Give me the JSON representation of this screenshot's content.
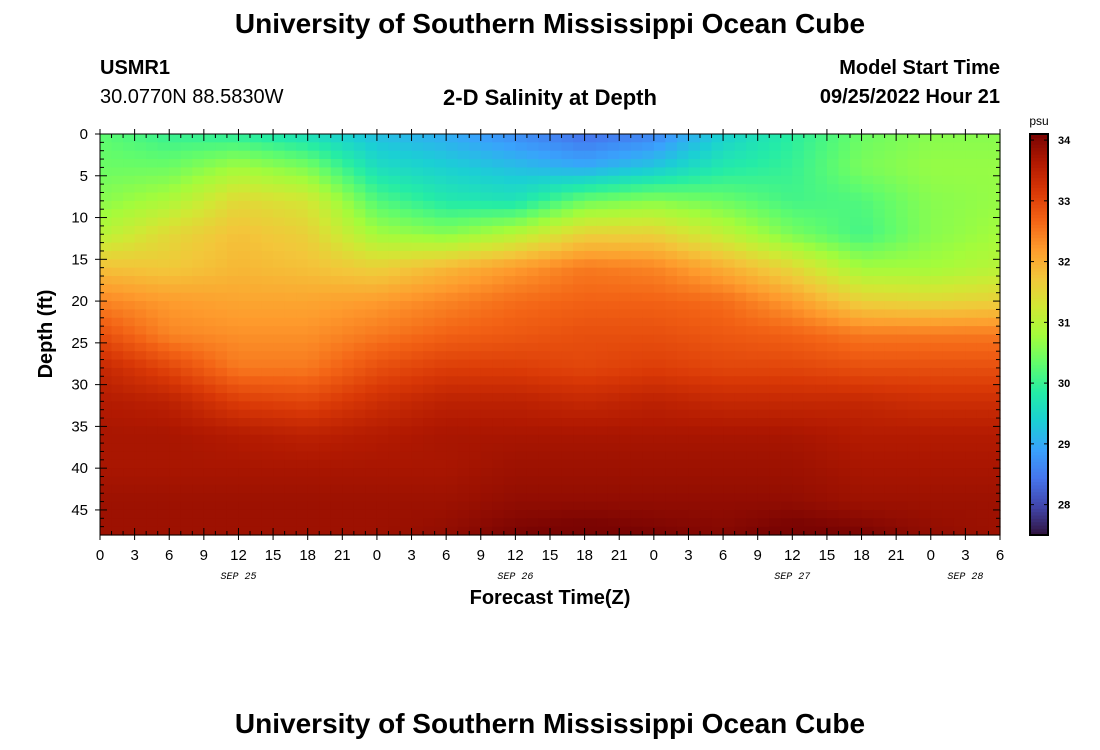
{
  "header": {
    "title": "University of Southern Mississippi Ocean Cube",
    "station_id": "USMR1",
    "coordinates": "30.0770N  88.5830W",
    "plot_title": "2-D Salinity at Depth",
    "model_start_label": "Model Start Time",
    "model_start_value": "09/25/2022 Hour 21"
  },
  "footer": {
    "title": "University of Southern Mississippi Ocean Cube"
  },
  "chart_data": {
    "type": "heatmap",
    "title": "2-D Salinity at Depth",
    "xlabel": "Forecast Time(Z)",
    "ylabel": "Depth (ft)",
    "x_tick_labels": [
      "0",
      "3",
      "6",
      "9",
      "12",
      "15",
      "18",
      "21",
      "0",
      "3",
      "6",
      "9",
      "12",
      "15",
      "18",
      "21",
      "0",
      "3",
      "6",
      "9",
      "12",
      "15",
      "18",
      "21",
      "0",
      "3",
      "6"
    ],
    "x_range_hours": [
      0,
      78
    ],
    "day_labels": [
      {
        "label": "SEP 25",
        "hour": 12
      },
      {
        "label": "SEP 26",
        "hour": 36
      },
      {
        "label": "SEP 27",
        "hour": 60
      },
      {
        "label": "SEP 28",
        "hour": 75
      }
    ],
    "y_ticks": [
      0,
      5,
      10,
      15,
      20,
      25,
      30,
      35,
      40,
      45
    ],
    "ylim": [
      0,
      48
    ],
    "colorbar": {
      "unit": "psu",
      "min": 27.5,
      "max": 34.1,
      "ticks": [
        28,
        29,
        30,
        31,
        32,
        33,
        34
      ],
      "colormap": [
        "#30123b",
        "#4145ab",
        "#4675ed",
        "#39a2fc",
        "#1bcfd4",
        "#24eca6",
        "#61fc6c",
        "#a4fc3b",
        "#d1e834",
        "#f3c63a",
        "#fe9b2d",
        "#f36315",
        "#d93806",
        "#b11901",
        "#7a0402"
      ]
    },
    "grid": {
      "hours": [
        0,
        6,
        12,
        18,
        24,
        30,
        36,
        42,
        48,
        54,
        60,
        66,
        72,
        78
      ],
      "depths": [
        0,
        4,
        8,
        12,
        16,
        20,
        24,
        28,
        32,
        36,
        40,
        44,
        48
      ],
      "salinity_psu": [
        [
          30.3,
          30.0,
          29.9,
          29.6,
          29.2,
          29.0,
          28.7,
          28.4,
          28.6,
          29.4,
          29.9,
          30.4,
          30.6,
          30.6
        ],
        [
          30.4,
          30.4,
          30.8,
          30.5,
          29.6,
          29.4,
          29.2,
          29.0,
          29.3,
          29.8,
          30.0,
          30.5,
          30.7,
          30.7
        ],
        [
          30.6,
          30.9,
          31.5,
          31.3,
          30.2,
          29.8,
          29.7,
          30.4,
          30.6,
          30.4,
          30.1,
          30.2,
          30.6,
          30.7
        ],
        [
          31.0,
          31.5,
          31.8,
          31.6,
          30.8,
          30.6,
          31.0,
          31.6,
          31.6,
          31.1,
          30.5,
          30.1,
          30.6,
          30.8
        ],
        [
          31.8,
          31.7,
          31.9,
          31.8,
          31.6,
          31.9,
          32.2,
          32.5,
          32.4,
          32.0,
          31.5,
          30.8,
          30.8,
          31.0
        ],
        [
          32.4,
          32.2,
          32.1,
          32.1,
          32.2,
          32.4,
          32.6,
          32.7,
          32.7,
          32.6,
          32.2,
          31.6,
          31.5,
          31.6
        ],
        [
          32.9,
          32.4,
          32.3,
          32.3,
          32.5,
          32.7,
          32.8,
          32.9,
          32.9,
          32.8,
          32.7,
          32.5,
          32.5,
          32.5
        ],
        [
          33.4,
          33.0,
          32.5,
          32.5,
          32.9,
          33.1,
          33.1,
          33.0,
          33.1,
          33.0,
          33.0,
          32.9,
          32.9,
          32.9
        ],
        [
          33.6,
          33.5,
          33.1,
          33.0,
          33.3,
          33.5,
          33.5,
          33.4,
          33.5,
          33.4,
          33.4,
          33.4,
          33.3,
          33.3
        ],
        [
          33.7,
          33.7,
          33.6,
          33.5,
          33.6,
          33.7,
          33.7,
          33.7,
          33.7,
          33.7,
          33.7,
          33.6,
          33.6,
          33.6
        ],
        [
          33.7,
          33.7,
          33.7,
          33.7,
          33.7,
          33.7,
          33.8,
          33.8,
          33.8,
          33.8,
          33.8,
          33.7,
          33.7,
          33.7
        ],
        [
          33.8,
          33.8,
          33.8,
          33.8,
          33.8,
          33.8,
          33.9,
          33.9,
          33.9,
          33.9,
          33.9,
          33.8,
          33.8,
          33.8
        ],
        [
          33.8,
          33.8,
          33.8,
          33.8,
          33.8,
          33.9,
          34.1,
          34.2,
          34.1,
          34.0,
          34.2,
          34.1,
          33.9,
          33.8
        ]
      ]
    }
  }
}
